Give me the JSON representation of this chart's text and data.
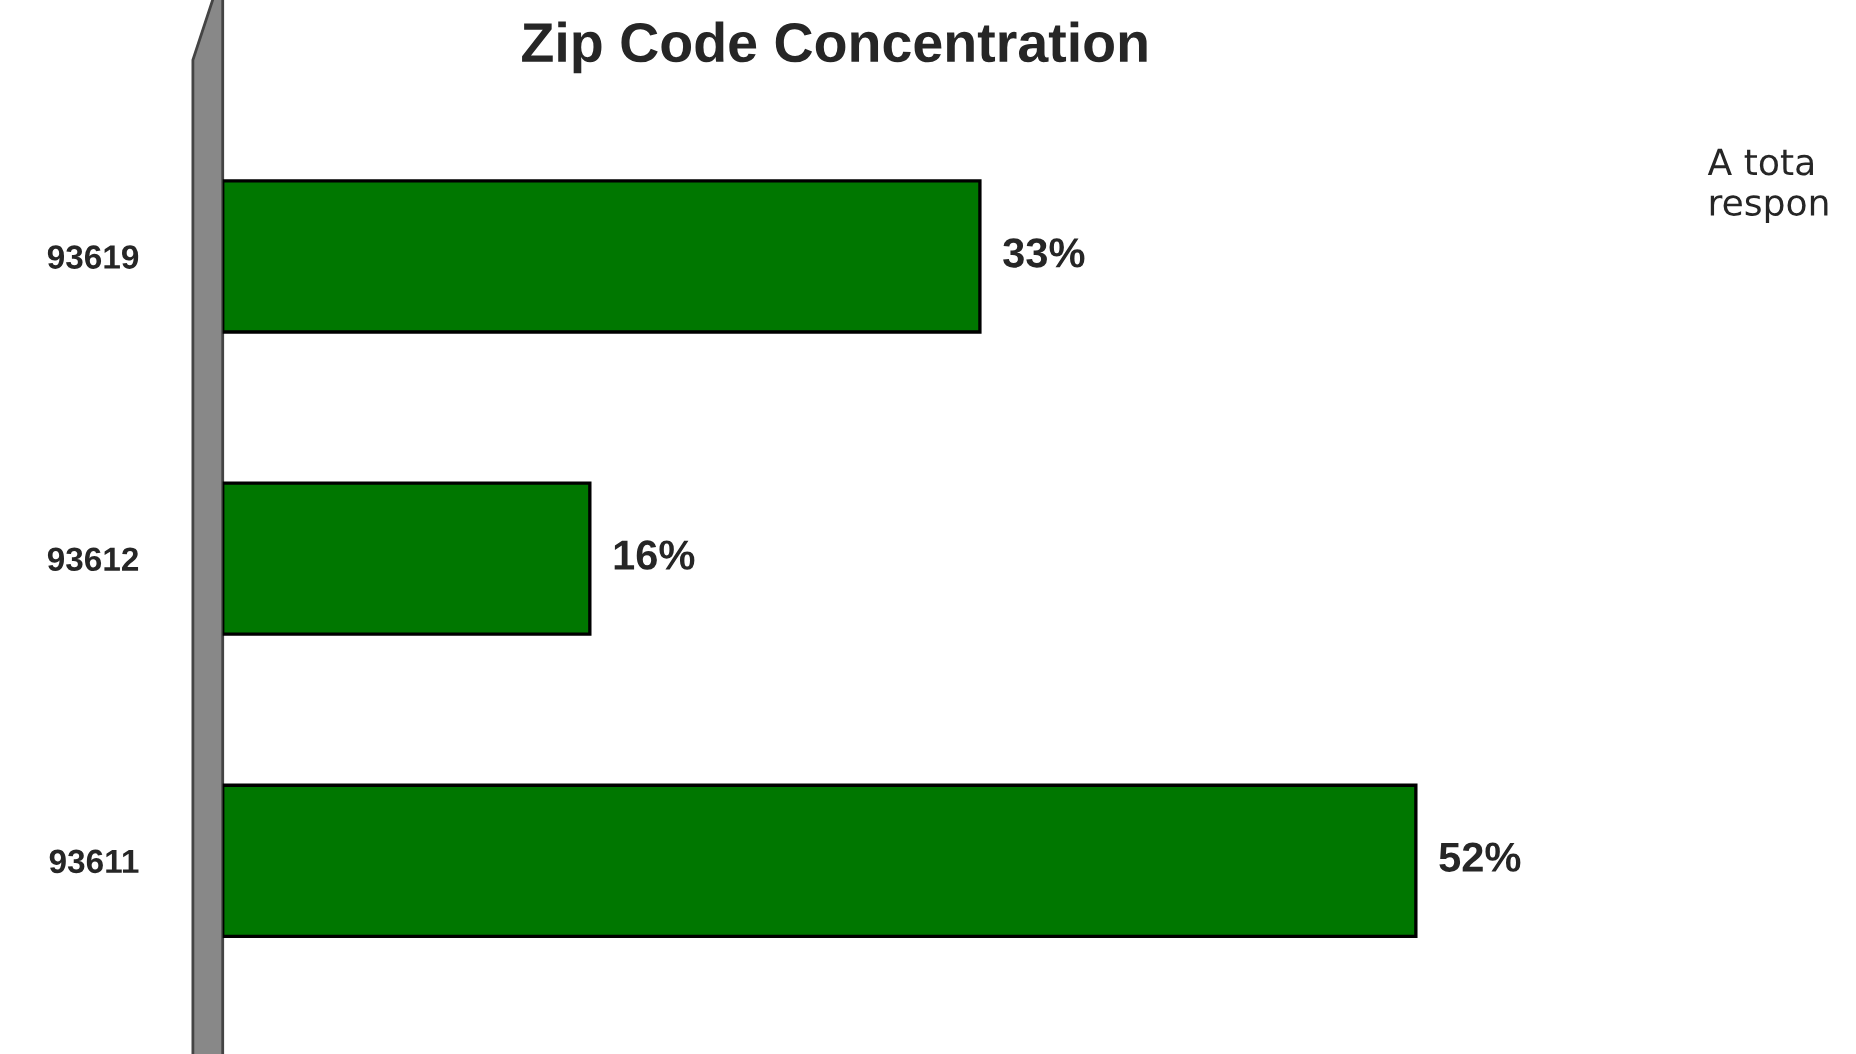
{
  "chart_data": {
    "type": "bar",
    "orientation": "horizontal",
    "title": "Zip Code Concentration",
    "categories": [
      "93619",
      "93612",
      "93611"
    ],
    "values": [
      33,
      16,
      52
    ],
    "value_labels": [
      "33%",
      "16%",
      "52%"
    ],
    "color": "#007700",
    "annotations": [
      "A tota\nrespon"
    ],
    "grid": false,
    "legend": false
  }
}
